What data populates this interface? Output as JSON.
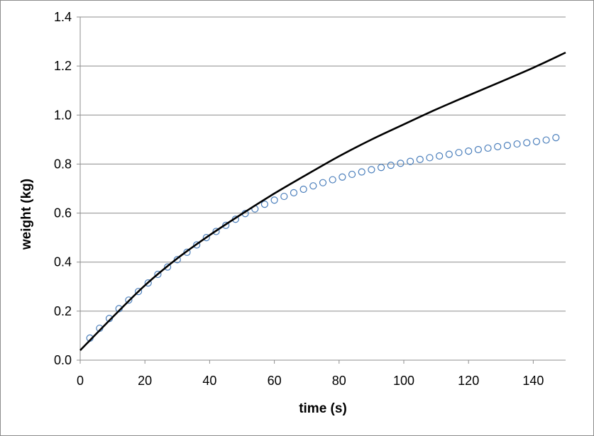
{
  "chart_data": {
    "type": "scatter",
    "title": "",
    "xlabel": "time (s)",
    "ylabel": "weight (kg)",
    "xlim": [
      0,
      150
    ],
    "ylim": [
      0,
      1.4
    ],
    "x_ticks": [
      "0",
      "20",
      "40",
      "60",
      "80",
      "100",
      "120",
      "140"
    ],
    "y_ticks": [
      "0.0",
      "0.2",
      "0.4",
      "0.6",
      "0.8",
      "1.0",
      "1.2",
      "1.4"
    ],
    "grid": "horizontal",
    "legend": "none",
    "series": [
      {
        "kind": "scatter",
        "marker": "open-circle",
        "color": "#4a7ebb",
        "x": [
          3,
          6,
          9,
          12,
          15,
          18,
          21,
          24,
          27,
          30,
          33,
          36,
          39,
          42,
          45,
          48,
          51,
          54,
          57,
          60,
          63,
          66,
          69,
          72,
          75,
          78,
          81,
          84,
          87,
          90,
          93,
          96,
          99,
          102,
          105,
          108,
          111,
          114,
          117,
          120,
          123,
          126,
          129,
          132,
          135,
          138,
          141,
          144,
          147
        ],
        "y": [
          0.09,
          0.13,
          0.17,
          0.21,
          0.245,
          0.28,
          0.315,
          0.35,
          0.38,
          0.41,
          0.44,
          0.47,
          0.5,
          0.525,
          0.55,
          0.575,
          0.598,
          0.617,
          0.636,
          0.653,
          0.668,
          0.683,
          0.697,
          0.711,
          0.724,
          0.736,
          0.747,
          0.758,
          0.768,
          0.777,
          0.786,
          0.795,
          0.803,
          0.811,
          0.819,
          0.826,
          0.833,
          0.84,
          0.847,
          0.853,
          0.859,
          0.865,
          0.871,
          0.876,
          0.882,
          0.887,
          0.892,
          0.898,
          0.908
        ]
      },
      {
        "kind": "line",
        "color": "#000000",
        "x": [
          0,
          10,
          20,
          30,
          40,
          50,
          60,
          70,
          80,
          90,
          100,
          110,
          120,
          130,
          140,
          150
        ],
        "y": [
          0.04,
          0.175,
          0.305,
          0.415,
          0.51,
          0.597,
          0.68,
          0.757,
          0.832,
          0.9,
          0.962,
          1.023,
          1.08,
          1.136,
          1.193,
          1.255
        ]
      }
    ]
  }
}
